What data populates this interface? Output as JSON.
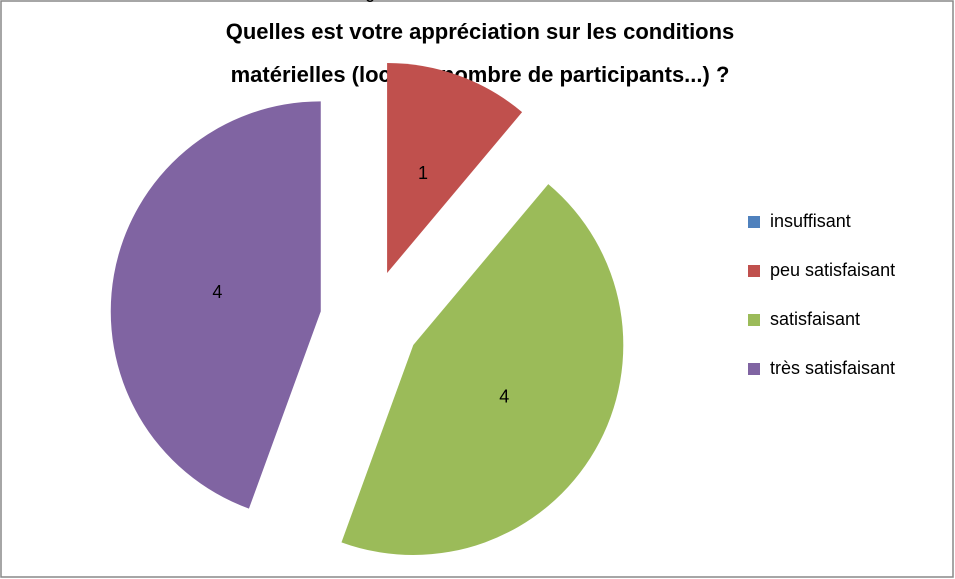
{
  "chart_data": {
    "type": "pie",
    "title": [
      "Quelles est votre appréciation sur les conditions",
      "matérielles (locaux,  nombre de participants...) ?"
    ],
    "categories": [
      "insuffisant",
      "peu satisfaisant",
      "satisfaisant",
      "très satisfaisant"
    ],
    "values": [
      0,
      1,
      4,
      4
    ],
    "colors": [
      "#4f81bd",
      "#c0504d",
      "#9bbb59",
      "#8064a2"
    ],
    "legend": "right"
  }
}
